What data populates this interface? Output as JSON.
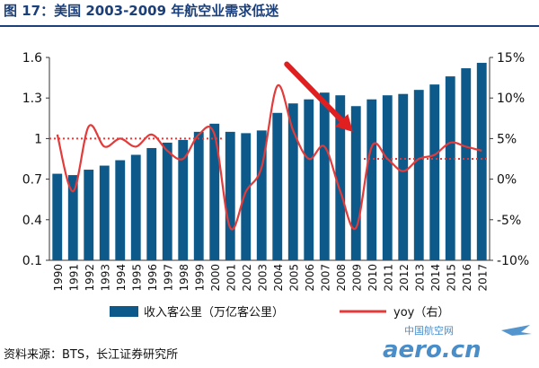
{
  "figure_title": "图 17：美国 2003-2009 年航空业需求低迷",
  "source_note": "资料来源：BTS，长江证券研究所",
  "watermark": {
    "top": "中国航空网",
    "main": "aero.cn"
  },
  "colors": {
    "bar": "#0d5a8a",
    "line": "#e33a3a",
    "dotted": "#e33a3a",
    "arrow": "#e02020",
    "title": "#1a3f7a",
    "axis": "#333333"
  },
  "chart_data": {
    "type": "bar+line",
    "title": "",
    "categories": [
      "1990",
      "1991",
      "1992",
      "1993",
      "1994",
      "1995",
      "1996",
      "1997",
      "1998",
      "1999",
      "2000",
      "2001",
      "2002",
      "2003",
      "2004",
      "2005",
      "2006",
      "2007",
      "2008",
      "2009",
      "2010",
      "2011",
      "2012",
      "2013",
      "2014",
      "2015",
      "2016",
      "2017"
    ],
    "series": [
      {
        "name": "收入客公里（万亿客公里）",
        "type": "bar",
        "axis": "left",
        "values": [
          0.74,
          0.73,
          0.77,
          0.8,
          0.84,
          0.88,
          0.93,
          0.97,
          0.99,
          1.05,
          1.11,
          1.05,
          1.04,
          1.06,
          1.19,
          1.26,
          1.29,
          1.34,
          1.32,
          1.24,
          1.29,
          1.32,
          1.33,
          1.36,
          1.4,
          1.46,
          1.52,
          1.56
        ]
      },
      {
        "name": "yoy（右）",
        "type": "line",
        "axis": "right",
        "unit": "%",
        "values": [
          5.5,
          -1.5,
          6.5,
          4,
          5,
          4,
          5.5,
          3.5,
          2.5,
          5.5,
          5.5,
          -6,
          -1.5,
          1.5,
          11.5,
          6,
          2.5,
          4,
          -1.5,
          -6,
          4,
          2.5,
          1,
          2.5,
          3,
          4.5,
          4,
          3.5
        ]
      }
    ],
    "reference_lines": [
      {
        "from": "1990",
        "to": "2000",
        "value": 5,
        "axis": "right",
        "style": "dotted"
      },
      {
        "from": "2010",
        "to": "2017",
        "value": 2.5,
        "axis": "right",
        "style": "dotted"
      }
    ],
    "annotation_arrow": {
      "from_category": "2005",
      "from_value": 1.55,
      "to_category": "2009",
      "to_value": 1.05,
      "axis": "left"
    },
    "left_axis": {
      "ylim": [
        0.1,
        1.6
      ],
      "ticks": [
        0.1,
        0.4,
        0.7,
        1,
        1.3,
        1.6
      ],
      "tick_labels": [
        "0.1",
        "0.4",
        "0.7",
        "1",
        "1.3",
        "1.6"
      ]
    },
    "right_axis": {
      "ylim": [
        -10,
        15
      ],
      "ticks": [
        -10,
        -5,
        0,
        5,
        10,
        15
      ],
      "tick_labels": [
        "-10%",
        "-5%",
        "0%",
        "5%",
        "10%",
        "15%"
      ]
    },
    "legend": {
      "position": "bottom",
      "bar_label": "收入客公里（万亿客公里）",
      "line_label": "yoy（右）"
    },
    "grid": false
  }
}
